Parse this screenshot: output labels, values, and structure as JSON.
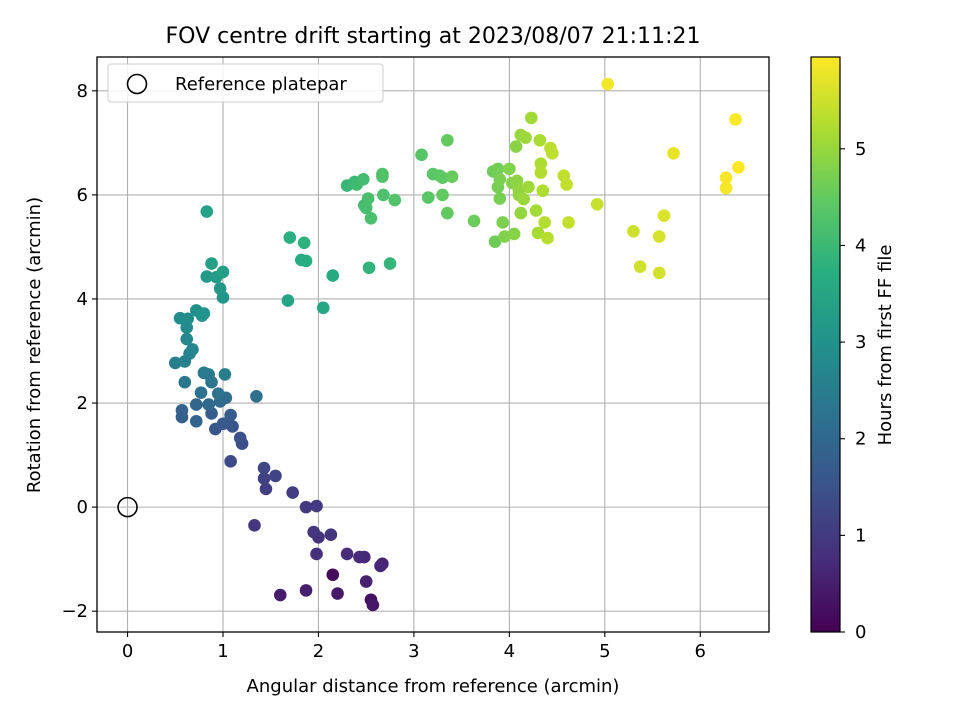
{
  "chart_data": {
    "type": "scatter",
    "title": "FOV centre drift starting at 2023/08/07 21:11:21",
    "xlabel": "Angular distance from reference (arcmin)",
    "ylabel": "Rotation from reference (arcmin)",
    "xlim": [
      -0.32,
      6.72
    ],
    "ylim": [
      -2.4,
      8.65
    ],
    "xticks": [
      "0",
      "1",
      "2",
      "3",
      "4",
      "5",
      "6"
    ],
    "yticks": [
      "−2",
      "0",
      "2",
      "4",
      "6",
      "8"
    ],
    "grid": true,
    "legend": {
      "placement": "top-left",
      "label": "Reference platepar"
    },
    "reference_point": {
      "x": 0,
      "y": 0
    },
    "colorbar": {
      "label": "Hours from first FF file",
      "range": [
        0,
        5.95
      ],
      "ticks": [
        "0",
        "1",
        "2",
        "3",
        "4",
        "5"
      ],
      "colormap": "viridis"
    },
    "points": [
      [
        2.15,
        -1.3,
        0.15
      ],
      [
        2.55,
        -1.78,
        0.25
      ],
      [
        2.57,
        -1.88,
        0.35
      ],
      [
        2.2,
        -1.66,
        0.4
      ],
      [
        1.6,
        -1.69,
        0.45
      ],
      [
        1.87,
        -1.6,
        0.5
      ],
      [
        2.5,
        -1.43,
        0.55
      ],
      [
        2.67,
        -1.09,
        0.6
      ],
      [
        2.65,
        -1.13,
        0.62
      ],
      [
        2.48,
        -0.96,
        0.65
      ],
      [
        2.43,
        -0.96,
        0.7
      ],
      [
        2.3,
        -0.9,
        0.75
      ],
      [
        1.98,
        -0.9,
        0.8
      ],
      [
        2.0,
        -0.58,
        0.85
      ],
      [
        1.95,
        -0.48,
        0.88
      ],
      [
        2.13,
        -0.53,
        0.9
      ],
      [
        1.33,
        -0.35,
        0.95
      ],
      [
        1.87,
        0.0,
        0.98
      ],
      [
        1.98,
        0.02,
        1.0
      ],
      [
        1.73,
        0.28,
        1.05
      ],
      [
        1.45,
        0.35,
        1.1
      ],
      [
        1.43,
        0.55,
        1.15
      ],
      [
        1.55,
        0.6,
        1.2
      ],
      [
        1.43,
        0.75,
        1.25
      ],
      [
        1.08,
        0.88,
        1.3
      ],
      [
        1.2,
        1.22,
        1.4
      ],
      [
        1.18,
        1.33,
        1.45
      ],
      [
        1.1,
        1.55,
        1.5
      ],
      [
        1.05,
        1.62,
        1.55
      ],
      [
        0.92,
        1.5,
        1.6
      ],
      [
        1.0,
        1.6,
        1.65
      ],
      [
        1.08,
        1.77,
        1.7
      ],
      [
        0.88,
        1.8,
        1.75
      ],
      [
        0.57,
        1.73,
        1.8
      ],
      [
        0.57,
        1.86,
        1.85
      ],
      [
        0.72,
        1.65,
        1.9
      ],
      [
        0.72,
        1.97,
        1.95
      ],
      [
        0.85,
        1.97,
        2.0
      ],
      [
        0.97,
        2.03,
        2.05
      ],
      [
        1.03,
        2.1,
        2.1
      ],
      [
        1.35,
        2.13,
        2.15
      ],
      [
        0.77,
        2.2,
        2.2
      ],
      [
        0.95,
        2.18,
        2.25
      ],
      [
        0.88,
        2.4,
        2.3
      ],
      [
        0.6,
        2.4,
        2.35
      ],
      [
        0.85,
        2.55,
        2.4
      ],
      [
        0.8,
        2.58,
        2.45
      ],
      [
        1.02,
        2.55,
        2.5
      ],
      [
        0.5,
        2.77,
        2.55
      ],
      [
        0.6,
        2.8,
        2.6
      ],
      [
        0.65,
        2.95,
        2.65
      ],
      [
        0.68,
        3.03,
        2.7
      ],
      [
        0.62,
        3.23,
        2.75
      ],
      [
        0.62,
        3.45,
        2.8
      ],
      [
        0.55,
        3.63,
        2.85
      ],
      [
        0.63,
        3.62,
        2.9
      ],
      [
        0.72,
        3.78,
        2.95
      ],
      [
        0.8,
        3.72,
        3.0
      ],
      [
        0.78,
        3.68,
        3.05
      ],
      [
        1.0,
        4.03,
        3.1
      ],
      [
        0.97,
        4.2,
        3.15
      ],
      [
        0.83,
        4.43,
        3.2
      ],
      [
        0.93,
        4.42,
        3.25
      ],
      [
        1.0,
        4.52,
        3.3
      ],
      [
        0.88,
        4.68,
        3.35
      ],
      [
        0.83,
        5.68,
        3.4
      ],
      [
        1.68,
        3.97,
        3.5
      ],
      [
        2.05,
        3.83,
        3.55
      ],
      [
        2.15,
        4.45,
        3.6
      ],
      [
        1.82,
        4.75,
        3.65
      ],
      [
        1.87,
        4.73,
        3.7
      ],
      [
        1.7,
        5.18,
        3.75
      ],
      [
        1.85,
        5.08,
        3.8
      ],
      [
        2.53,
        4.6,
        3.85
      ],
      [
        2.75,
        4.68,
        3.9
      ],
      [
        2.3,
        6.18,
        3.95
      ],
      [
        2.38,
        6.25,
        4.0
      ],
      [
        2.4,
        6.2,
        4.05
      ],
      [
        2.47,
        6.3,
        4.1
      ],
      [
        2.48,
        5.8,
        4.12
      ],
      [
        2.5,
        5.75,
        4.15
      ],
      [
        2.52,
        5.93,
        4.18
      ],
      [
        2.55,
        5.55,
        4.2
      ],
      [
        2.68,
        6.0,
        4.22
      ],
      [
        2.67,
        6.35,
        4.25
      ],
      [
        2.67,
        6.4,
        4.28
      ],
      [
        2.8,
        5.9,
        4.3
      ],
      [
        3.08,
        6.77,
        4.35
      ],
      [
        3.15,
        5.95,
        4.38
      ],
      [
        3.2,
        6.4,
        4.4
      ],
      [
        3.27,
        6.37,
        4.42
      ],
      [
        3.3,
        6.33,
        4.45
      ],
      [
        3.3,
        6.0,
        4.48
      ],
      [
        3.35,
        5.65,
        4.5
      ],
      [
        3.35,
        7.05,
        4.52
      ],
      [
        3.4,
        6.35,
        4.55
      ],
      [
        3.63,
        5.5,
        4.58
      ],
      [
        3.83,
        6.45,
        4.6
      ],
      [
        3.85,
        5.1,
        4.62
      ],
      [
        3.88,
        6.5,
        4.65
      ],
      [
        3.88,
        6.15,
        4.68
      ],
      [
        3.9,
        5.93,
        4.7
      ],
      [
        3.9,
        6.3,
        4.72
      ],
      [
        3.93,
        5.47,
        4.75
      ],
      [
        3.95,
        5.2,
        4.78
      ],
      [
        4.0,
        6.5,
        4.8
      ],
      [
        4.03,
        6.23,
        4.82
      ],
      [
        4.05,
        5.25,
        4.85
      ],
      [
        4.07,
        6.93,
        4.87
      ],
      [
        4.08,
        6.27,
        4.9
      ],
      [
        4.1,
        6.0,
        4.92
      ],
      [
        4.1,
        6.1,
        4.95
      ],
      [
        4.12,
        5.65,
        4.97
      ],
      [
        4.12,
        7.15,
        5.0
      ],
      [
        4.15,
        5.92,
        5.02
      ],
      [
        4.17,
        7.1,
        5.05
      ],
      [
        4.2,
        6.15,
        5.07
      ],
      [
        4.23,
        7.48,
        5.1
      ],
      [
        4.28,
        5.7,
        5.12
      ],
      [
        4.3,
        5.27,
        5.15
      ],
      [
        4.32,
        7.05,
        5.17
      ],
      [
        4.33,
        6.6,
        5.2
      ],
      [
        4.35,
        6.08,
        5.22
      ],
      [
        4.33,
        6.43,
        5.25
      ],
      [
        4.37,
        5.47,
        5.27
      ],
      [
        4.4,
        5.17,
        5.3
      ],
      [
        4.43,
        6.9,
        5.32
      ],
      [
        4.45,
        6.8,
        5.35
      ],
      [
        4.57,
        6.37,
        5.37
      ],
      [
        4.6,
        6.2,
        5.4
      ],
      [
        4.62,
        5.47,
        5.42
      ],
      [
        4.92,
        5.82,
        5.45
      ],
      [
        5.3,
        5.3,
        5.5
      ],
      [
        5.37,
        4.62,
        5.52
      ],
      [
        5.57,
        4.5,
        5.55
      ],
      [
        5.57,
        5.2,
        5.58
      ],
      [
        5.62,
        5.6,
        5.62
      ],
      [
        5.72,
        6.8,
        5.75
      ],
      [
        5.03,
        8.13,
        5.85
      ],
      [
        6.27,
        6.13,
        5.88
      ],
      [
        6.27,
        6.33,
        5.9
      ],
      [
        6.37,
        7.45,
        5.92
      ],
      [
        6.4,
        6.53,
        5.95
      ]
    ]
  }
}
